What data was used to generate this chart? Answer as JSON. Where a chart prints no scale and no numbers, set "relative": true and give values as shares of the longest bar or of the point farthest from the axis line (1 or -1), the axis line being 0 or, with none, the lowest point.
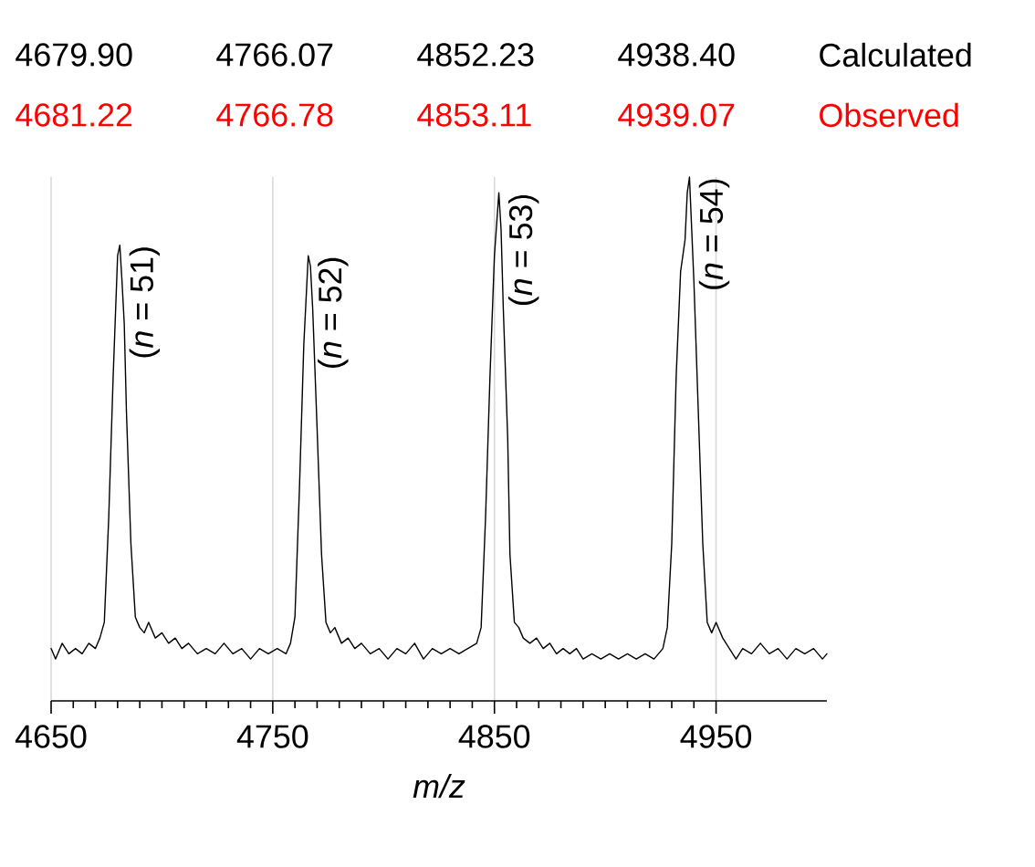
{
  "chart_data": {
    "type": "line",
    "relative": true,
    "xlabel": "m/z",
    "xlim": [
      4650,
      5000
    ],
    "xticks": [
      4650,
      4750,
      4850,
      4950
    ],
    "grid": true,
    "series": [
      {
        "color": "#000000",
        "x": [
          4650,
          4652,
          4655,
          4658,
          4661,
          4664,
          4667,
          4670,
          4672,
          4674,
          4676,
          4678,
          4680,
          4681,
          4682,
          4683,
          4684,
          4686,
          4688,
          4690,
          4692,
          4694,
          4697,
          4700,
          4703,
          4706,
          4709,
          4712,
          4716,
          4720,
          4724,
          4728,
          4732,
          4736,
          4740,
          4744,
          4748,
          4752,
          4756,
          4758,
          4760,
          4762,
          4764,
          4766,
          4767,
          4768,
          4770,
          4772,
          4774,
          4776,
          4778,
          4781,
          4784,
          4787,
          4790,
          4794,
          4798,
          4802,
          4806,
          4810,
          4814,
          4818,
          4822,
          4826,
          4830,
          4834,
          4838,
          4842,
          4844,
          4846,
          4848,
          4850,
          4852,
          4853,
          4854,
          4856,
          4857,
          4859,
          4861,
          4863,
          4866,
          4869,
          4872,
          4875,
          4878,
          4881,
          4884,
          4887,
          4890,
          4894,
          4898,
          4902,
          4906,
          4910,
          4914,
          4918,
          4922,
          4926,
          4928,
          4930,
          4932,
          4934,
          4936,
          4937,
          4938,
          4939,
          4940,
          4942,
          4944,
          4946,
          4948,
          4950,
          4953,
          4956,
          4959,
          4962,
          4966,
          4970,
          4974,
          4978,
          4982,
          4986,
          4990,
          4994,
          4998,
          5000
        ],
        "values": [
          0.1,
          0.08,
          0.11,
          0.09,
          0.1,
          0.09,
          0.11,
          0.1,
          0.12,
          0.15,
          0.35,
          0.62,
          0.85,
          0.87,
          0.8,
          0.72,
          0.55,
          0.3,
          0.16,
          0.14,
          0.13,
          0.15,
          0.12,
          0.13,
          0.11,
          0.12,
          0.1,
          0.11,
          0.09,
          0.1,
          0.09,
          0.11,
          0.09,
          0.1,
          0.08,
          0.1,
          0.09,
          0.1,
          0.09,
          0.11,
          0.16,
          0.4,
          0.68,
          0.85,
          0.83,
          0.75,
          0.52,
          0.28,
          0.15,
          0.13,
          0.14,
          0.11,
          0.12,
          0.1,
          0.11,
          0.09,
          0.1,
          0.08,
          0.1,
          0.09,
          0.11,
          0.08,
          0.1,
          0.09,
          0.1,
          0.09,
          0.1,
          0.11,
          0.14,
          0.35,
          0.62,
          0.85,
          0.97,
          0.9,
          0.75,
          0.5,
          0.28,
          0.15,
          0.14,
          0.12,
          0.11,
          0.12,
          0.1,
          0.11,
          0.09,
          0.1,
          0.09,
          0.1,
          0.08,
          0.09,
          0.08,
          0.09,
          0.08,
          0.09,
          0.08,
          0.09,
          0.08,
          0.1,
          0.14,
          0.3,
          0.62,
          0.82,
          0.88,
          0.97,
          1.0,
          0.9,
          0.8,
          0.55,
          0.3,
          0.15,
          0.13,
          0.15,
          0.12,
          0.1,
          0.08,
          0.1,
          0.09,
          0.11,
          0.09,
          0.1,
          0.08,
          0.1,
          0.09,
          0.1,
          0.08,
          0.09
        ]
      }
    ],
    "annotations": [
      "4679.90",
      "4766.07",
      "4852.23",
      "4938.40",
      "Calculated",
      "4681.22",
      "4766.78",
      "4853.11",
      "4939.07",
      "Observed",
      {
        "text": "(*n* = 51)",
        "x": 4681,
        "y": 0.87
      },
      {
        "text": "(*n* = 52)",
        "x": 4766,
        "y": 0.85
      },
      {
        "text": "(*n* = 53)",
        "x": 4852,
        "y": 0.97
      },
      {
        "text": "(*n* = 54)",
        "x": 4938,
        "y": 1.0
      }
    ]
  }
}
